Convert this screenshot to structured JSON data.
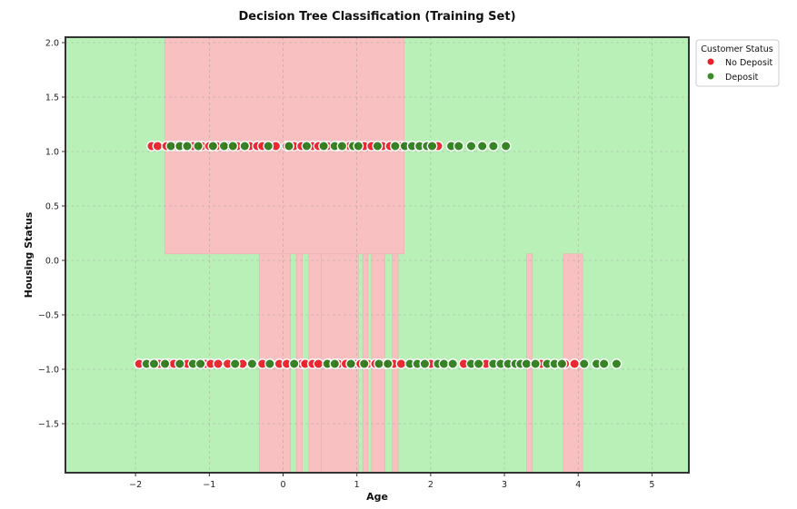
{
  "chart_data": {
    "type": "scatter",
    "title": "Decision Tree Classification (Training Set)",
    "xlabel": "Age",
    "ylabel": "Housing Status",
    "xlim": [
      -2.95,
      5.5
    ],
    "ylim": [
      -1.95,
      2.05
    ],
    "x_ticks": [
      -2,
      -1,
      0,
      1,
      2,
      3,
      4,
      5
    ],
    "x_tick_labels": [
      "−2",
      "−1",
      "0",
      "1",
      "2",
      "3",
      "4",
      "5"
    ],
    "y_ticks": [
      -1.5,
      -1.0,
      -0.5,
      0.0,
      0.5,
      1.0,
      1.5,
      2.0
    ],
    "y_tick_labels": [
      "−1.5",
      "−1.0",
      "−0.5",
      "0.0",
      "0.5",
      "1.0",
      "1.5",
      "2.0"
    ],
    "grid": true,
    "legend": {
      "title": "Customer Status",
      "placement": "outside top-right",
      "entries": [
        {
          "label": "No Deposit",
          "color": "#e8202a"
        },
        {
          "label": "Deposit",
          "color": "#3c8c2c"
        }
      ]
    },
    "colors": {
      "region_no_deposit": "#f8c0c0",
      "region_deposit": "#b9f0b8",
      "point_no_deposit": "#e8202a",
      "point_deposit": "#2e7d1e"
    },
    "decision_regions": {
      "background_class": "Deposit",
      "no_deposit_regions": [
        {
          "x": [
            -1.6,
            1.64
          ],
          "y": [
            0.06,
            2.05
          ]
        },
        {
          "x": [
            -0.32,
            0.1
          ],
          "y": [
            -1.95,
            0.06
          ]
        },
        {
          "x": [
            0.18,
            0.26
          ],
          "y": [
            -1.95,
            0.06
          ]
        },
        {
          "x": [
            0.35,
            0.52
          ],
          "y": [
            -1.95,
            0.06
          ]
        },
        {
          "x": [
            0.52,
            1.02
          ],
          "y": [
            -1.95,
            0.06
          ]
        },
        {
          "x": [
            1.08,
            1.15
          ],
          "y": [
            -1.95,
            0.06
          ]
        },
        {
          "x": [
            1.2,
            1.38
          ],
          "y": [
            -1.95,
            0.06
          ]
        },
        {
          "x": [
            1.48,
            1.56
          ],
          "y": [
            -1.95,
            0.06
          ]
        },
        {
          "x": [
            3.3,
            3.38
          ],
          "y": [
            -1.95,
            0.06
          ]
        },
        {
          "x": [
            3.8,
            4.06
          ],
          "y": [
            -1.95,
            0.06
          ]
        }
      ]
    },
    "series": [
      {
        "name": "No Deposit",
        "points": [
          [
            -1.78,
            1.05
          ],
          [
            -1.7,
            1.05
          ],
          [
            -1.58,
            1.05
          ],
          [
            -1.45,
            1.05
          ],
          [
            -1.35,
            1.05
          ],
          [
            -1.22,
            1.05
          ],
          [
            -1.1,
            1.05
          ],
          [
            -1.0,
            1.05
          ],
          [
            -0.9,
            1.05
          ],
          [
            -0.75,
            1.05
          ],
          [
            -0.62,
            1.05
          ],
          [
            -0.45,
            1.05
          ],
          [
            -0.35,
            1.05
          ],
          [
            -0.28,
            1.05
          ],
          [
            -0.1,
            1.05
          ],
          [
            0.05,
            1.05
          ],
          [
            0.15,
            1.05
          ],
          [
            0.25,
            1.05
          ],
          [
            0.4,
            1.05
          ],
          [
            0.48,
            1.05
          ],
          [
            0.6,
            1.05
          ],
          [
            0.75,
            1.05
          ],
          [
            0.9,
            1.05
          ],
          [
            1.1,
            1.05
          ],
          [
            1.2,
            1.05
          ],
          [
            1.35,
            1.05
          ],
          [
            1.45,
            1.05
          ],
          [
            1.6,
            1.05
          ],
          [
            2.1,
            1.05
          ],
          [
            -1.95,
            -0.95
          ],
          [
            -1.68,
            -0.95
          ],
          [
            -1.55,
            -0.95
          ],
          [
            -1.48,
            -0.95
          ],
          [
            -1.3,
            -0.95
          ],
          [
            -1.05,
            -0.95
          ],
          [
            -0.98,
            -0.95
          ],
          [
            -0.88,
            -0.95
          ],
          [
            -0.75,
            -0.95
          ],
          [
            -0.55,
            -0.95
          ],
          [
            -0.28,
            -0.95
          ],
          [
            -0.05,
            -0.95
          ],
          [
            0.05,
            -0.95
          ],
          [
            0.25,
            -0.95
          ],
          [
            0.3,
            -0.95
          ],
          [
            0.4,
            -0.95
          ],
          [
            0.48,
            -0.95
          ],
          [
            0.62,
            -0.95
          ],
          [
            0.75,
            -0.95
          ],
          [
            0.85,
            -0.95
          ],
          [
            0.98,
            -0.95
          ],
          [
            1.05,
            -0.95
          ],
          [
            1.15,
            -0.95
          ],
          [
            1.25,
            -0.95
          ],
          [
            1.38,
            -0.95
          ],
          [
            1.5,
            -0.95
          ],
          [
            1.6,
            -0.95
          ],
          [
            2.0,
            -0.95
          ],
          [
            2.45,
            -0.95
          ],
          [
            2.75,
            -0.95
          ],
          [
            3.5,
            -0.95
          ],
          [
            3.82,
            -0.95
          ],
          [
            3.95,
            -0.95
          ]
        ]
      },
      {
        "name": "Deposit",
        "points": [
          [
            -1.52,
            1.05
          ],
          [
            -1.4,
            1.05
          ],
          [
            -1.3,
            1.05
          ],
          [
            -1.15,
            1.05
          ],
          [
            -0.95,
            1.05
          ],
          [
            -0.8,
            1.05
          ],
          [
            -0.68,
            1.05
          ],
          [
            -0.52,
            1.05
          ],
          [
            -0.2,
            1.05
          ],
          [
            0.08,
            1.05
          ],
          [
            0.32,
            1.05
          ],
          [
            0.55,
            1.05
          ],
          [
            0.7,
            1.05
          ],
          [
            0.8,
            1.05
          ],
          [
            0.95,
            1.05
          ],
          [
            1.02,
            1.05
          ],
          [
            1.28,
            1.05
          ],
          [
            1.52,
            1.05
          ],
          [
            1.65,
            1.05
          ],
          [
            1.75,
            1.05
          ],
          [
            1.85,
            1.05
          ],
          [
            1.95,
            1.05
          ],
          [
            2.02,
            1.05
          ],
          [
            2.28,
            1.05
          ],
          [
            2.38,
            1.05
          ],
          [
            2.55,
            1.05
          ],
          [
            2.7,
            1.05
          ],
          [
            2.85,
            1.05
          ],
          [
            3.02,
            1.05
          ],
          [
            -1.85,
            -0.95
          ],
          [
            -1.75,
            -0.95
          ],
          [
            -1.6,
            -0.95
          ],
          [
            -1.4,
            -0.95
          ],
          [
            -1.22,
            -0.95
          ],
          [
            -1.12,
            -0.95
          ],
          [
            -0.65,
            -0.95
          ],
          [
            -0.42,
            -0.95
          ],
          [
            -0.18,
            -0.95
          ],
          [
            0.15,
            -0.95
          ],
          [
            0.6,
            -0.95
          ],
          [
            0.7,
            -0.95
          ],
          [
            0.92,
            -0.95
          ],
          [
            1.1,
            -0.95
          ],
          [
            1.3,
            -0.95
          ],
          [
            1.42,
            -0.95
          ],
          [
            1.72,
            -0.95
          ],
          [
            1.82,
            -0.95
          ],
          [
            1.92,
            -0.95
          ],
          [
            2.1,
            -0.95
          ],
          [
            2.18,
            -0.95
          ],
          [
            2.3,
            -0.95
          ],
          [
            2.55,
            -0.95
          ],
          [
            2.65,
            -0.95
          ],
          [
            2.85,
            -0.95
          ],
          [
            2.95,
            -0.95
          ],
          [
            3.05,
            -0.95
          ],
          [
            3.15,
            -0.95
          ],
          [
            3.22,
            -0.95
          ],
          [
            3.3,
            -0.95
          ],
          [
            3.42,
            -0.95
          ],
          [
            3.58,
            -0.95
          ],
          [
            3.68,
            -0.95
          ],
          [
            3.78,
            -0.95
          ],
          [
            4.08,
            -0.95
          ],
          [
            4.25,
            -0.95
          ],
          [
            4.35,
            -0.95
          ],
          [
            4.52,
            -0.95
          ]
        ]
      }
    ]
  }
}
